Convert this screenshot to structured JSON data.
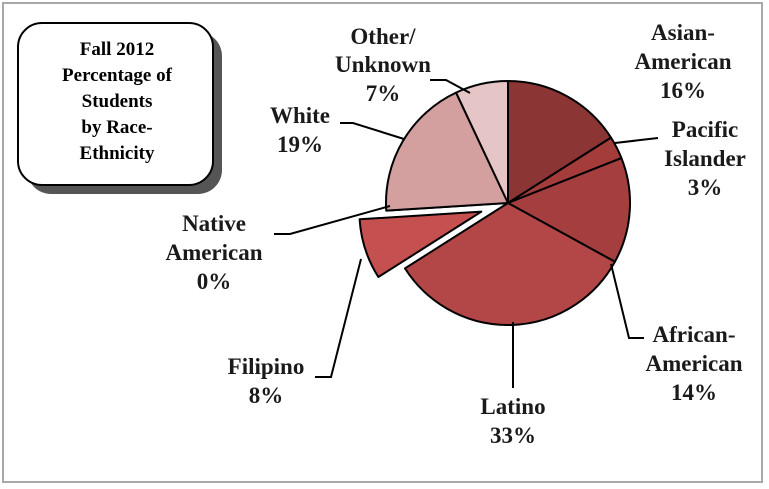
{
  "chart_data": {
    "type": "pie",
    "title": "Fall 2012 Percentage of Students by Race-Ethnicity",
    "title_lines": [
      "Fall 2012",
      "Percentage of",
      "Students",
      "by Race-",
      "Ethnicity"
    ],
    "slices": [
      {
        "name": "Asian-American",
        "value": 16,
        "label_lines": [
          "Asian-",
          "American",
          "16%"
        ],
        "color": "#8b3535",
        "exploded": false
      },
      {
        "name": "Pacific Islander",
        "value": 3,
        "label_lines": [
          "Pacific",
          "Islander",
          "3%"
        ],
        "color": "#a53c3c",
        "exploded": false
      },
      {
        "name": "African-American",
        "value": 14,
        "label_lines": [
          "African-",
          "American",
          "14%"
        ],
        "color": "#a53f3f",
        "exploded": false
      },
      {
        "name": "Latino",
        "value": 33,
        "label_lines": [
          "Latino",
          "33%"
        ],
        "color": "#b34747",
        "exploded": false
      },
      {
        "name": "Filipino",
        "value": 8,
        "label_lines": [
          "Filipino",
          "8%"
        ],
        "color": "#c55050",
        "exploded": true
      },
      {
        "name": "Native American",
        "value": 0,
        "label_lines": [
          "Native",
          "American",
          "0%"
        ],
        "color": "#c86464",
        "exploded": false
      },
      {
        "name": "White",
        "value": 19,
        "label_lines": [
          "White",
          "19%"
        ],
        "color": "#d4a09f",
        "exploded": false
      },
      {
        "name": "Other/Unknown",
        "value": 7,
        "label_lines": [
          "Other/",
          "Unknown",
          "7%"
        ],
        "color": "#e6c5c6",
        "exploded": false
      }
    ]
  }
}
